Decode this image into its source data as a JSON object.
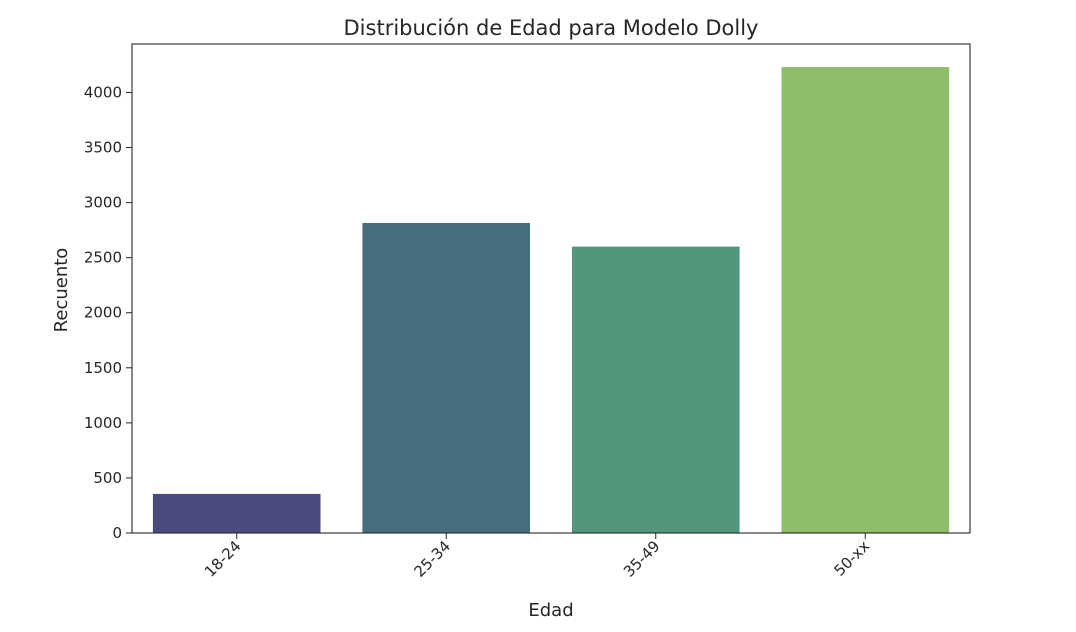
{
  "chart_data": {
    "type": "bar",
    "title": "Distribución de Edad para Modelo Dolly",
    "xlabel": "Edad",
    "ylabel": "Recuento",
    "categories": [
      "18-24",
      "25-34",
      "35-49",
      "50-xx"
    ],
    "values": [
      355,
      2815,
      2600,
      4230
    ],
    "colors": [
      "#4a4a7c",
      "#466f7e",
      "#52967c",
      "#8ebe6a"
    ],
    "ylim": [
      0,
      4440
    ],
    "yticks": [
      0,
      500,
      1000,
      1500,
      2000,
      2500,
      3000,
      3500,
      4000
    ],
    "x_tick_rotation_deg": 45,
    "grid": false,
    "legend": "none"
  }
}
